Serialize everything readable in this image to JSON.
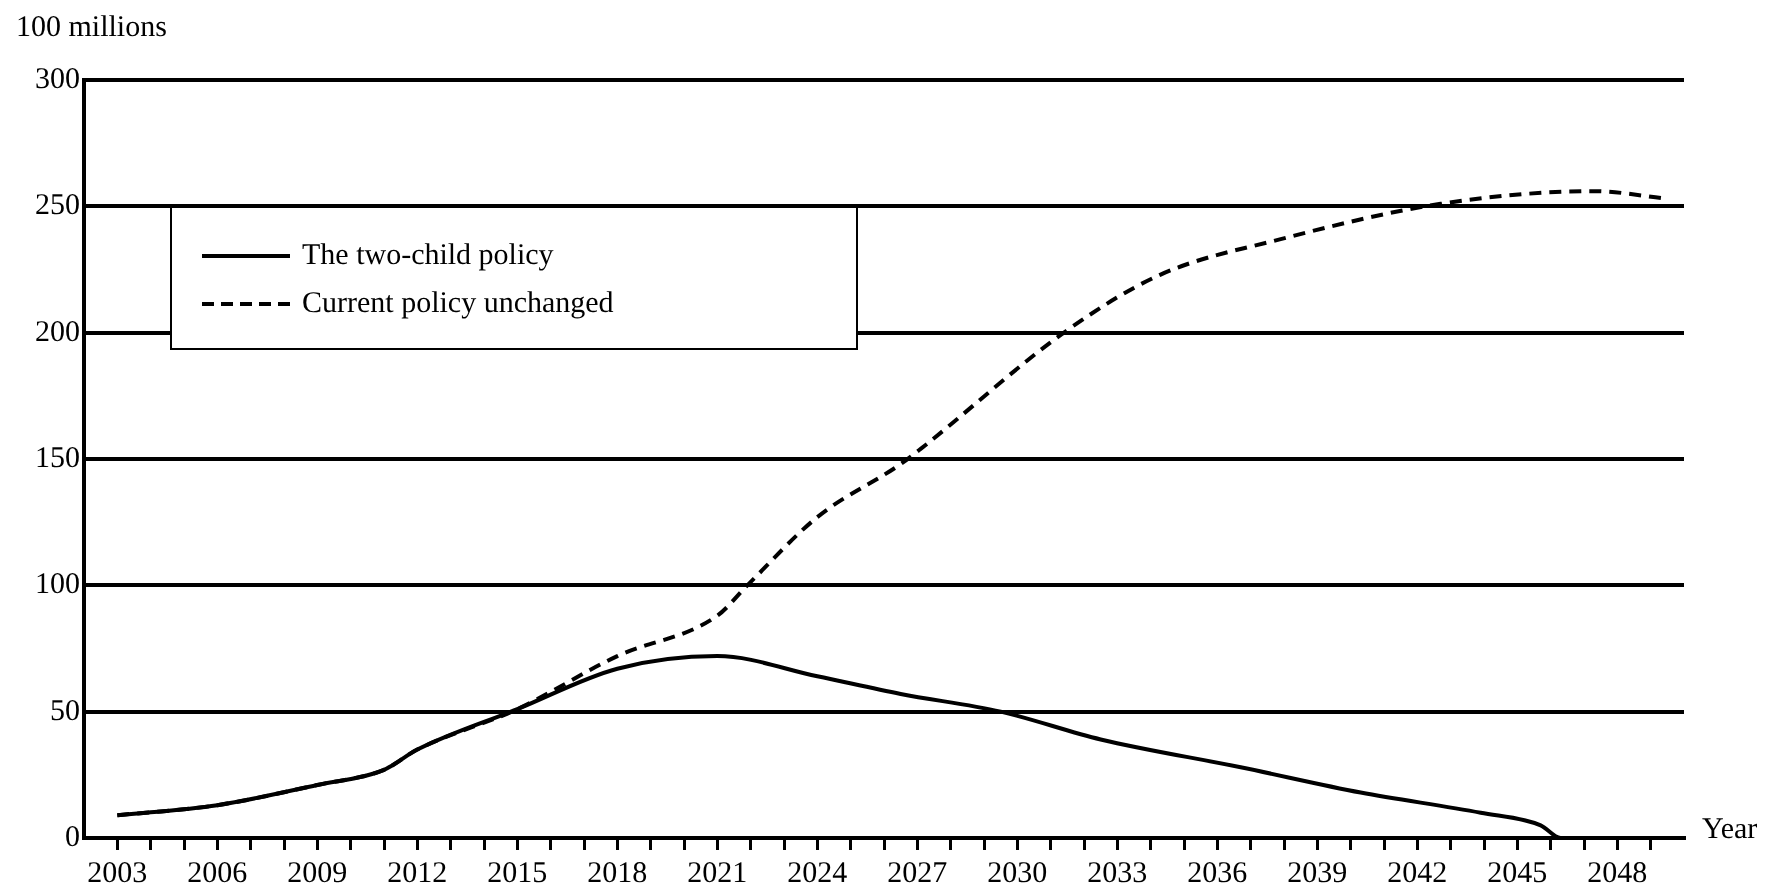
{
  "chart_data": {
    "type": "line",
    "ylabel": "100 millions",
    "xlabel": "Year",
    "xlim": [
      2002,
      2050
    ],
    "ylim": [
      0,
      300
    ],
    "yticks": [
      0,
      50,
      100,
      150,
      200,
      250,
      300
    ],
    "xticks": [
      2003,
      {
        "value": 2004,
        "label": null
      },
      {
        "value": 2005,
        "label": null
      },
      2006,
      {
        "value": 2007,
        "label": null
      },
      {
        "value": 2008,
        "label": null
      },
      2009,
      {
        "value": 2010,
        "label": null
      },
      {
        "value": 2011,
        "label": null
      },
      2012,
      {
        "value": 2013,
        "label": null
      },
      {
        "value": 2014,
        "label": null
      },
      2015,
      {
        "value": 2016,
        "label": null
      },
      {
        "value": 2017,
        "label": null
      },
      2018,
      {
        "value": 2019,
        "label": null
      },
      {
        "value": 2020,
        "label": null
      },
      2021,
      {
        "value": 2022,
        "label": null
      },
      {
        "value": 2023,
        "label": null
      },
      2024,
      {
        "value": 2025,
        "label": null
      },
      {
        "value": 2026,
        "label": null
      },
      2027,
      {
        "value": 2028,
        "label": null
      },
      {
        "value": 2029,
        "label": null
      },
      2030,
      {
        "value": 2031,
        "label": null
      },
      {
        "value": 2032,
        "label": null
      },
      2033,
      {
        "value": 2034,
        "label": null
      },
      {
        "value": 2035,
        "label": null
      },
      2036,
      {
        "value": 2037,
        "label": null
      },
      {
        "value": 2038,
        "label": null
      },
      2039,
      {
        "value": 2040,
        "label": null
      },
      {
        "value": 2041,
        "label": null
      },
      2042,
      {
        "value": 2043,
        "label": null
      },
      {
        "value": 2044,
        "label": null
      },
      2045,
      {
        "value": 2046,
        "label": null
      },
      {
        "value": 2047,
        "label": null
      },
      2048,
      {
        "value": 2049,
        "label": null
      }
    ],
    "grid": "y",
    "legend": "top left",
    "marker": "none",
    "series": [
      {
        "name": "The two-child policy",
        "color": "#000000",
        "line_style": "solid",
        "x": [
          2003,
          2006,
          2009,
          2011,
          2012,
          2015,
          2018,
          2021,
          2024,
          2026.5,
          2029.5,
          2032.5,
          2036.7,
          2040.3,
          2043.9,
          2045.7,
          2046.3,
          2049.5
        ],
        "values": [
          9,
          13,
          21,
          27,
          35,
          51,
          67,
          72,
          64,
          57,
          50,
          39,
          28,
          18,
          10,
          5,
          0,
          0
        ]
      },
      {
        "name": "Current policy unchanged",
        "color": "#000000",
        "line_style": "dashed",
        "x": [
          2003,
          2006,
          2009,
          2011,
          2012,
          2015,
          2018,
          2021,
          2021.9,
          2024,
          2026.5,
          2027.1,
          2031.5,
          2034.3,
          2037.9,
          2042.7,
          2047.3,
          2049.5
        ],
        "values": [
          9,
          13,
          21,
          27,
          35,
          51,
          72,
          88,
          100,
          127,
          148,
          154,
          201,
          223,
          237,
          251,
          256,
          253
        ]
      }
    ]
  }
}
